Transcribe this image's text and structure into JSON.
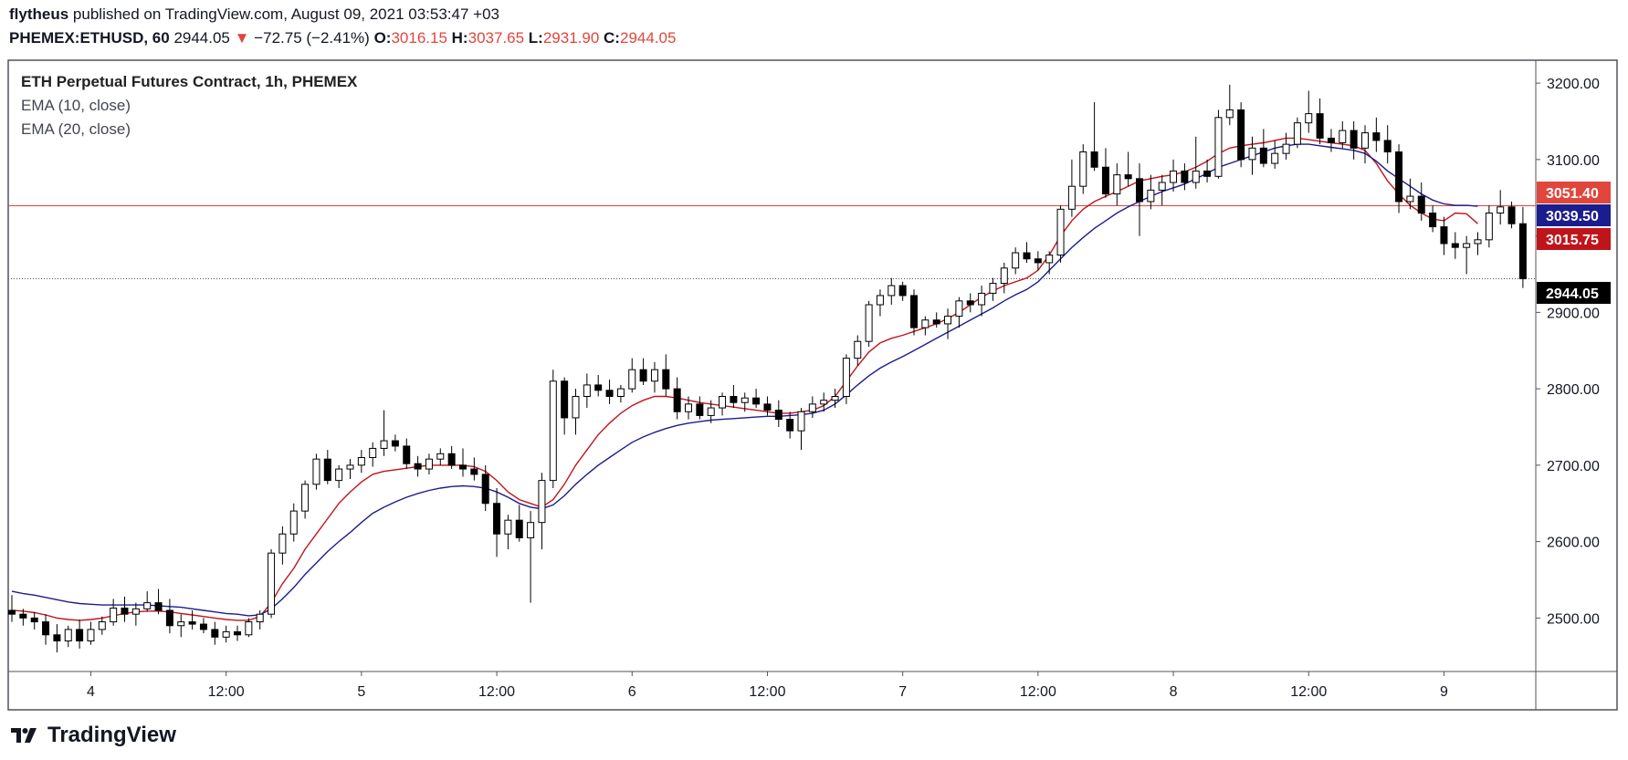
{
  "header": {
    "author": "flytheus",
    "published_text": "published on TradingView.com, August 09, 2021 03:53:47 +03",
    "symbol": "PHEMEX:ETHUSD, 60",
    "last": "2944.05",
    "change": "−72.75 (−2.41%)",
    "o_label": "O:",
    "o_value": "3016.15",
    "h_label": "H:",
    "h_value": "3037.65",
    "l_label": "L:",
    "l_value": "2931.90",
    "c_label": "C:",
    "c_value": "2944.05"
  },
  "legend": {
    "title": "ETH Perpetual Futures Contract, 1h, PHEMEX",
    "ema10": "EMA (10, close)",
    "ema20": "EMA (20, close)"
  },
  "brand": {
    "name": "TradingView"
  },
  "colors": {
    "up_body": "#ffffff",
    "down_body": "#000000",
    "wick": "#000000",
    "ema10": "#c0141b",
    "ema20": "#1c1d8c",
    "hline": "#e0463c",
    "red_text": "#e0463c"
  },
  "chart_data": {
    "type": "candlestick",
    "ylim": [
      2430,
      3230
    ],
    "y_ticks": [
      2500,
      2600,
      2700,
      2800,
      2900,
      3000,
      3100,
      3200
    ],
    "y_tick_labels": [
      "2500.00",
      "2600.00",
      "2700.00",
      "2800.00",
      "2900.00",
      "3000.00",
      "3100.00",
      "3200.00"
    ],
    "x_tick_labels": [
      {
        "index": 7,
        "label": "4"
      },
      {
        "index": 19,
        "label": "12:00"
      },
      {
        "index": 31,
        "label": "5"
      },
      {
        "index": 43,
        "label": "12:00"
      },
      {
        "index": 55,
        "label": "6"
      },
      {
        "index": 67,
        "label": "12:00"
      },
      {
        "index": 79,
        "label": "7"
      },
      {
        "index": 91,
        "label": "12:00"
      },
      {
        "index": 103,
        "label": "8"
      },
      {
        "index": 115,
        "label": "12:00"
      },
      {
        "index": 127,
        "label": "9"
      }
    ],
    "horizontal_line": 3039.5,
    "dotted_line": 2944.05,
    "price_badges": [
      {
        "label": "3051.40",
        "value": 3051.4,
        "color": "#e0463c"
      },
      {
        "label": "3039.50",
        "value": 3039.5,
        "color": "#1c1d8c"
      },
      {
        "label": "3015.75",
        "value": 3015.75,
        "color": "#c0141b"
      },
      {
        "label": "2944.05",
        "value": 2944.05,
        "color": "#000000"
      }
    ],
    "series": [
      {
        "name": "EMA (10, close)",
        "values": [
          2510,
          2509,
          2507,
          2504,
          2500,
          2498,
          2497,
          2498,
          2500,
          2503,
          2506,
          2508,
          2509,
          2509,
          2508,
          2506,
          2504,
          2502,
          2500,
          2498,
          2497,
          2497,
          2502,
          2520,
          2545,
          2565,
          2590,
          2610,
          2630,
          2650,
          2665,
          2678,
          2688,
          2692,
          2694,
          2696,
          2698,
          2700,
          2700,
          2700,
          2700,
          2698,
          2692,
          2680,
          2665,
          2655,
          2650,
          2645,
          2655,
          2675,
          2700,
          2720,
          2740,
          2755,
          2768,
          2778,
          2785,
          2790,
          2790,
          2788,
          2785,
          2782,
          2780,
          2778,
          2776,
          2774,
          2772,
          2770,
          2768,
          2768,
          2770,
          2772,
          2778,
          2790,
          2810,
          2830,
          2848,
          2860,
          2866,
          2870,
          2875,
          2880,
          2885,
          2892,
          2900,
          2910,
          2920,
          2928,
          2935,
          2940,
          2945,
          2955,
          2975,
          3000,
          3020,
          3035,
          3045,
          3052,
          3058,
          3065,
          3072,
          3075,
          3078,
          3080,
          3084,
          3090,
          3098,
          3108,
          3115,
          3118,
          3120,
          3122,
          3125,
          3128,
          3128,
          3126,
          3124,
          3122,
          3120,
          3118,
          3112,
          3095,
          3072,
          3055,
          3040,
          3030,
          3022,
          3020,
          3030,
          3029,
          3016
        ]
      },
      {
        "name": "EMA (20, close)",
        "values": [
          2535,
          2532,
          2530,
          2527,
          2524,
          2521,
          2519,
          2518,
          2517,
          2517,
          2517,
          2517,
          2517,
          2516,
          2515,
          2514,
          2512,
          2510,
          2508,
          2506,
          2505,
          2503,
          2504,
          2512,
          2525,
          2540,
          2557,
          2572,
          2587,
          2600,
          2612,
          2625,
          2637,
          2645,
          2652,
          2658,
          2663,
          2667,
          2670,
          2672,
          2673,
          2672,
          2670,
          2665,
          2658,
          2650,
          2645,
          2643,
          2648,
          2660,
          2675,
          2688,
          2700,
          2710,
          2720,
          2730,
          2737,
          2743,
          2748,
          2752,
          2755,
          2757,
          2759,
          2760,
          2761,
          2762,
          2763,
          2764,
          2764,
          2765,
          2766,
          2768,
          2772,
          2780,
          2792,
          2805,
          2817,
          2827,
          2835,
          2842,
          2850,
          2858,
          2866,
          2874,
          2882,
          2890,
          2898,
          2906,
          2915,
          2923,
          2930,
          2940,
          2955,
          2970,
          2985,
          2998,
          3010,
          3020,
          3030,
          3038,
          3045,
          3052,
          3058,
          3063,
          3068,
          3075,
          3082,
          3090,
          3095,
          3100,
          3105,
          3110,
          3115,
          3118,
          3120,
          3120,
          3118,
          3116,
          3114,
          3112,
          3108,
          3098,
          3085,
          3075,
          3065,
          3055,
          3047,
          3042,
          3040,
          3040,
          3039
        ]
      }
    ],
    "candles": [
      [
        2510,
        2530,
        2495,
        2505
      ],
      [
        2505,
        2512,
        2490,
        2500
      ],
      [
        2500,
        2508,
        2485,
        2495
      ],
      [
        2495,
        2505,
        2465,
        2478
      ],
      [
        2478,
        2492,
        2455,
        2470
      ],
      [
        2470,
        2490,
        2462,
        2485
      ],
      [
        2485,
        2498,
        2460,
        2470
      ],
      [
        2470,
        2495,
        2465,
        2485
      ],
      [
        2485,
        2502,
        2478,
        2495
      ],
      [
        2495,
        2525,
        2490,
        2513
      ],
      [
        2513,
        2528,
        2495,
        2505
      ],
      [
        2505,
        2520,
        2490,
        2512
      ],
      [
        2512,
        2535,
        2508,
        2520
      ],
      [
        2520,
        2538,
        2505,
        2510
      ],
      [
        2510,
        2525,
        2480,
        2490
      ],
      [
        2490,
        2505,
        2475,
        2495
      ],
      [
        2495,
        2510,
        2485,
        2492
      ],
      [
        2492,
        2500,
        2480,
        2485
      ],
      [
        2485,
        2495,
        2465,
        2475
      ],
      [
        2475,
        2490,
        2468,
        2482
      ],
      [
        2482,
        2490,
        2470,
        2478
      ],
      [
        2478,
        2500,
        2475,
        2495
      ],
      [
        2495,
        2510,
        2485,
        2505
      ],
      [
        2505,
        2590,
        2500,
        2585
      ],
      [
        2585,
        2620,
        2570,
        2610
      ],
      [
        2610,
        2650,
        2600,
        2640
      ],
      [
        2640,
        2680,
        2630,
        2675
      ],
      [
        2675,
        2715,
        2668,
        2708
      ],
      [
        2708,
        2720,
        2675,
        2680
      ],
      [
        2680,
        2700,
        2670,
        2695
      ],
      [
        2695,
        2708,
        2682,
        2700
      ],
      [
        2700,
        2720,
        2690,
        2710
      ],
      [
        2710,
        2730,
        2698,
        2722
      ],
      [
        2722,
        2772,
        2712,
        2732
      ],
      [
        2732,
        2740,
        2718,
        2725
      ],
      [
        2725,
        2735,
        2695,
        2702
      ],
      [
        2702,
        2712,
        2685,
        2695
      ],
      [
        2695,
        2715,
        2688,
        2708
      ],
      [
        2708,
        2722,
        2700,
        2715
      ],
      [
        2715,
        2725,
        2695,
        2700
      ],
      [
        2700,
        2722,
        2685,
        2695
      ],
      [
        2695,
        2710,
        2680,
        2688
      ],
      [
        2688,
        2700,
        2640,
        2650
      ],
      [
        2650,
        2670,
        2580,
        2610
      ],
      [
        2610,
        2635,
        2590,
        2628
      ],
      [
        2628,
        2648,
        2600,
        2605
      ],
      [
        2605,
        2640,
        2520,
        2625
      ],
      [
        2625,
        2690,
        2590,
        2680
      ],
      [
        2680,
        2825,
        2670,
        2810
      ],
      [
        2810,
        2815,
        2740,
        2762
      ],
      [
        2762,
        2800,
        2740,
        2790
      ],
      [
        2790,
        2820,
        2775,
        2805
      ],
      [
        2805,
        2818,
        2790,
        2798
      ],
      [
        2798,
        2812,
        2780,
        2790
      ],
      [
        2790,
        2805,
        2782,
        2800
      ],
      [
        2800,
        2840,
        2795,
        2825
      ],
      [
        2825,
        2840,
        2805,
        2810
      ],
      [
        2810,
        2835,
        2795,
        2825
      ],
      [
        2825,
        2845,
        2790,
        2800
      ],
      [
        2800,
        2815,
        2760,
        2770
      ],
      [
        2770,
        2790,
        2760,
        2780
      ],
      [
        2780,
        2790,
        2760,
        2765
      ],
      [
        2765,
        2785,
        2755,
        2775
      ],
      [
        2775,
        2795,
        2765,
        2790
      ],
      [
        2790,
        2805,
        2775,
        2782
      ],
      [
        2782,
        2795,
        2770,
        2788
      ],
      [
        2788,
        2800,
        2775,
        2780
      ],
      [
        2780,
        2790,
        2765,
        2772
      ],
      [
        2772,
        2785,
        2750,
        2760
      ],
      [
        2760,
        2770,
        2735,
        2745
      ],
      [
        2745,
        2775,
        2720,
        2770
      ],
      [
        2770,
        2790,
        2762,
        2780
      ],
      [
        2780,
        2795,
        2770,
        2785
      ],
      [
        2785,
        2800,
        2775,
        2790
      ],
      [
        2790,
        2845,
        2780,
        2840
      ],
      [
        2840,
        2870,
        2830,
        2862
      ],
      [
        2862,
        2915,
        2855,
        2910
      ],
      [
        2910,
        2930,
        2895,
        2922
      ],
      [
        2922,
        2945,
        2910,
        2935
      ],
      [
        2935,
        2940,
        2915,
        2922
      ],
      [
        2922,
        2930,
        2870,
        2880
      ],
      [
        2880,
        2895,
        2870,
        2890
      ],
      [
        2890,
        2900,
        2880,
        2885
      ],
      [
        2885,
        2905,
        2865,
        2895
      ],
      [
        2895,
        2920,
        2880,
        2915
      ],
      [
        2915,
        2925,
        2900,
        2910
      ],
      [
        2910,
        2935,
        2895,
        2925
      ],
      [
        2925,
        2945,
        2915,
        2938
      ],
      [
        2938,
        2965,
        2925,
        2958
      ],
      [
        2958,
        2985,
        2950,
        2978
      ],
      [
        2978,
        2992,
        2965,
        2970
      ],
      [
        2970,
        2980,
        2955,
        2965
      ],
      [
        2965,
        2980,
        2950,
        2975
      ],
      [
        2975,
        3040,
        2965,
        3035
      ],
      [
        3035,
        3100,
        3025,
        3065
      ],
      [
        3065,
        3120,
        3055,
        3110
      ],
      [
        3110,
        3175,
        3085,
        3090
      ],
      [
        3090,
        3115,
        3050,
        3055
      ],
      [
        3055,
        3095,
        3040,
        3080
      ],
      [
        3080,
        3110,
        3065,
        3075
      ],
      [
        3075,
        3095,
        3000,
        3045
      ],
      [
        3045,
        3080,
        3035,
        3060
      ],
      [
        3060,
        3080,
        3040,
        3070
      ],
      [
        3070,
        3100,
        3058,
        3085
      ],
      [
        3085,
        3095,
        3060,
        3070
      ],
      [
        3070,
        3130,
        3062,
        3085
      ],
      [
        3085,
        3100,
        3070,
        3078
      ],
      [
        3078,
        3165,
        3075,
        3155
      ],
      [
        3155,
        3198,
        3145,
        3165
      ],
      [
        3165,
        3175,
        3090,
        3100
      ],
      [
        3100,
        3130,
        3080,
        3115
      ],
      [
        3115,
        3140,
        3090,
        3095
      ],
      [
        3095,
        3125,
        3088,
        3108
      ],
      [
        3108,
        3135,
        3100,
        3120
      ],
      [
        3120,
        3155,
        3115,
        3148
      ],
      [
        3148,
        3190,
        3135,
        3160
      ],
      [
        3160,
        3180,
        3120,
        3128
      ],
      [
        3128,
        3140,
        3110,
        3122
      ],
      [
        3122,
        3150,
        3115,
        3138
      ],
      [
        3138,
        3150,
        3100,
        3115
      ],
      [
        3115,
        3145,
        3095,
        3135
      ],
      [
        3135,
        3155,
        3110,
        3125
      ],
      [
        3125,
        3145,
        3095,
        3110
      ],
      [
        3110,
        3120,
        3030,
        3045
      ],
      [
        3045,
        3075,
        3035,
        3052
      ],
      [
        3052,
        3070,
        3020,
        3030
      ],
      [
        3030,
        3040,
        3005,
        3012
      ],
      [
        3012,
        3025,
        2975,
        2990
      ],
      [
        2990,
        3005,
        2970,
        2985
      ],
      [
        2985,
        3000,
        2950,
        2990
      ],
      [
        2990,
        3005,
        2975,
        2995
      ],
      [
        2995,
        3040,
        2985,
        3030
      ],
      [
        3030,
        3060,
        3015,
        3038
      ],
      [
        3038,
        3045,
        3010,
        3016
      ],
      [
        3016,
        3038,
        2932,
        2944
      ]
    ]
  }
}
